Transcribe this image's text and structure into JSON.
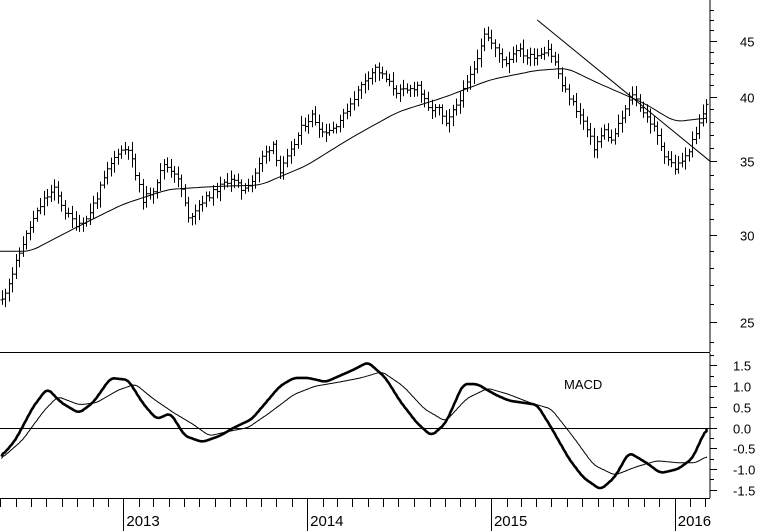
{
  "chart_data": [
    {
      "type": "ohlc",
      "panel": "price",
      "scale": "log",
      "ylim": [
        23.5,
        49
      ],
      "yticks": [
        25,
        30,
        35,
        40,
        45
      ],
      "ytick_labels": [
        "25",
        "30",
        "35",
        "40",
        "45"
      ],
      "x_start": "2012-05-01",
      "x_end": "2016-03-11",
      "bar_interval_days": 7,
      "anchors": [
        [
          "2012-05-04",
          26.2
        ],
        [
          "2012-05-25",
          27.7
        ],
        [
          "2012-06-15",
          29.5
        ],
        [
          "2012-07-06",
          31.0
        ],
        [
          "2012-07-27",
          32.3
        ],
        [
          "2012-08-17",
          33.0
        ],
        [
          "2012-09-07",
          31.5
        ],
        [
          "2012-09-28",
          30.7
        ],
        [
          "2012-10-19",
          31.0
        ],
        [
          "2012-11-09",
          32.5
        ],
        [
          "2012-11-30",
          34.3
        ],
        [
          "2012-12-21",
          35.7
        ],
        [
          "2013-01-11",
          36.0
        ],
        [
          "2013-01-25",
          34.0
        ],
        [
          "2013-02-08",
          32.3
        ],
        [
          "2013-03-01",
          33.0
        ],
        [
          "2013-03-22",
          34.8
        ],
        [
          "2013-04-12",
          34.2
        ],
        [
          "2013-04-26",
          33.0
        ],
        [
          "2013-05-10",
          31.0
        ],
        [
          "2013-05-31",
          32.0
        ],
        [
          "2013-06-21",
          32.6
        ],
        [
          "2013-07-12",
          33.2
        ],
        [
          "2013-08-02",
          33.8
        ],
        [
          "2013-08-23",
          33.0
        ],
        [
          "2013-09-13",
          33.6
        ],
        [
          "2013-10-04",
          35.3
        ],
        [
          "2013-10-25",
          36.3
        ],
        [
          "2013-11-08",
          34.2
        ],
        [
          "2013-11-29",
          35.7
        ],
        [
          "2013-12-20",
          37.5
        ],
        [
          "2014-01-10",
          38.5
        ],
        [
          "2014-01-31",
          37.2
        ],
        [
          "2014-02-21",
          37.5
        ],
        [
          "2014-03-14",
          38.5
        ],
        [
          "2014-04-04",
          40.0
        ],
        [
          "2014-04-25",
          41.5
        ],
        [
          "2014-05-16",
          42.5
        ],
        [
          "2014-06-06",
          41.5
        ],
        [
          "2014-06-27",
          40.5
        ],
        [
          "2014-07-18",
          40.5
        ],
        [
          "2014-08-08",
          41.0
        ],
        [
          "2014-08-29",
          39.0
        ],
        [
          "2014-09-19",
          39.0
        ],
        [
          "2014-10-03",
          37.7
        ],
        [
          "2014-10-17",
          38.8
        ],
        [
          "2014-11-07",
          40.5
        ],
        [
          "2014-11-28",
          42.5
        ],
        [
          "2014-12-19",
          45.8
        ],
        [
          "2015-01-09",
          44.2
        ],
        [
          "2015-01-30",
          43.0
        ],
        [
          "2015-02-20",
          44.3
        ],
        [
          "2015-03-13",
          43.5
        ],
        [
          "2015-04-03",
          43.7
        ],
        [
          "2015-04-24",
          44.3
        ],
        [
          "2015-05-08",
          43.0
        ],
        [
          "2015-05-22",
          41.0
        ],
        [
          "2015-06-12",
          39.5
        ],
        [
          "2015-07-03",
          38.0
        ],
        [
          "2015-07-24",
          36.0
        ],
        [
          "2015-08-14",
          37.3
        ],
        [
          "2015-08-28",
          36.5
        ],
        [
          "2015-09-18",
          38.3
        ],
        [
          "2015-10-09",
          40.3
        ],
        [
          "2015-10-30",
          38.8
        ],
        [
          "2015-11-20",
          37.5
        ],
        [
          "2015-12-11",
          35.5
        ],
        [
          "2016-01-01",
          34.5
        ],
        [
          "2016-01-22",
          35.3
        ],
        [
          "2016-02-12",
          37.0
        ],
        [
          "2016-03-04",
          39.5
        ]
      ],
      "moving_average": [
        [
          "2012-05-01",
          29.0
        ],
        [
          "2012-07-01",
          29.0
        ],
        [
          "2012-10-01",
          30.5
        ],
        [
          "2013-01-01",
          32.0
        ],
        [
          "2013-04-01",
          33.0
        ],
        [
          "2013-07-01",
          33.2
        ],
        [
          "2013-10-01",
          33.3
        ],
        [
          "2014-01-01",
          34.7
        ],
        [
          "2014-04-01",
          36.8
        ],
        [
          "2014-07-01",
          38.8
        ],
        [
          "2014-10-01",
          40.0
        ],
        [
          "2015-01-01",
          41.5
        ],
        [
          "2015-04-01",
          42.3
        ],
        [
          "2015-06-01",
          42.5
        ],
        [
          "2015-08-01",
          41.2
        ],
        [
          "2015-11-01",
          39.5
        ],
        [
          "2016-01-01",
          38.0
        ],
        [
          "2016-03-04",
          38.3
        ]
      ],
      "trendline": [
        [
          "2015-04-03",
          47.0
        ],
        [
          "2016-03-11",
          35.0
        ]
      ],
      "xticks": [
        "2013-01-01",
        "2014-01-01",
        "2015-01-01",
        "2016-01-01"
      ],
      "xtick_labels": [
        "2013",
        "2014",
        "2015",
        "2016"
      ]
    },
    {
      "type": "line",
      "panel": "indicator",
      "title": "MACD",
      "ylim": [
        -1.7,
        1.8
      ],
      "yticks": [
        -1.5,
        -1.0,
        -0.5,
        0.0,
        0.5,
        1.0,
        1.5
      ],
      "ytick_labels": [
        "-1.5",
        "-1.0",
        "-0.5",
        "0.0",
        "0.5",
        "1.0",
        "1.5"
      ],
      "zero_line": 0.0,
      "series": [
        {
          "role": "macd",
          "points": [
            [
              "2012-05-04",
              -0.7
            ],
            [
              "2012-06-01",
              -0.3
            ],
            [
              "2012-07-06",
              0.5
            ],
            [
              "2012-08-03",
              0.95
            ],
            [
              "2012-08-31",
              0.6
            ],
            [
              "2012-10-05",
              0.35
            ],
            [
              "2012-11-02",
              0.6
            ],
            [
              "2012-12-07",
              1.2
            ],
            [
              "2013-01-11",
              1.15
            ],
            [
              "2013-02-08",
              0.6
            ],
            [
              "2013-03-08",
              0.2
            ],
            [
              "2013-04-05",
              0.35
            ],
            [
              "2013-05-03",
              -0.2
            ],
            [
              "2013-06-07",
              -0.35
            ],
            [
              "2013-07-12",
              -0.2
            ],
            [
              "2013-08-09",
              0.0
            ],
            [
              "2013-09-13",
              0.2
            ],
            [
              "2013-10-11",
              0.6
            ],
            [
              "2013-11-08",
              1.0
            ],
            [
              "2013-12-06",
              1.2
            ],
            [
              "2014-01-03",
              1.2
            ],
            [
              "2014-02-07",
              1.1
            ],
            [
              "2014-03-07",
              1.25
            ],
            [
              "2014-04-04",
              1.4
            ],
            [
              "2014-05-02",
              1.58
            ],
            [
              "2014-06-06",
              1.2
            ],
            [
              "2014-07-04",
              0.65
            ],
            [
              "2014-08-08",
              0.1
            ],
            [
              "2014-09-05",
              -0.2
            ],
            [
              "2014-10-03",
              0.1
            ],
            [
              "2014-11-07",
              1.05
            ],
            [
              "2014-12-05",
              1.05
            ],
            [
              "2015-01-09",
              0.8
            ],
            [
              "2015-02-06",
              0.65
            ],
            [
              "2015-03-06",
              0.6
            ],
            [
              "2015-04-03",
              0.55
            ],
            [
              "2015-05-01",
              0.0
            ],
            [
              "2015-06-05",
              -0.75
            ],
            [
              "2015-07-03",
              -1.2
            ],
            [
              "2015-08-07",
              -1.5
            ],
            [
              "2015-09-04",
              -1.2
            ],
            [
              "2015-10-02",
              -0.6
            ],
            [
              "2015-11-06",
              -0.85
            ],
            [
              "2015-12-04",
              -1.1
            ],
            [
              "2016-01-08",
              -1.0
            ],
            [
              "2016-02-05",
              -0.75
            ],
            [
              "2016-03-04",
              -0.02
            ]
          ]
        },
        {
          "role": "signal",
          "points": [
            [
              "2012-05-04",
              -0.75
            ],
            [
              "2012-06-15",
              -0.3
            ],
            [
              "2012-07-27",
              0.4
            ],
            [
              "2012-08-24",
              0.75
            ],
            [
              "2012-10-05",
              0.55
            ],
            [
              "2012-11-09",
              0.6
            ],
            [
              "2012-12-21",
              0.9
            ],
            [
              "2013-01-25",
              1.05
            ],
            [
              "2013-03-01",
              0.7
            ],
            [
              "2013-04-12",
              0.35
            ],
            [
              "2013-05-17",
              0.1
            ],
            [
              "2013-06-21",
              -0.2
            ],
            [
              "2013-07-26",
              -0.1
            ],
            [
              "2013-09-06",
              0.0
            ],
            [
              "2013-10-18",
              0.35
            ],
            [
              "2013-12-06",
              0.8
            ],
            [
              "2014-01-17",
              1.0
            ],
            [
              "2014-03-07",
              1.1
            ],
            [
              "2014-04-18",
              1.2
            ],
            [
              "2014-05-30",
              1.35
            ],
            [
              "2014-07-11",
              1.0
            ],
            [
              "2014-08-22",
              0.45
            ],
            [
              "2014-10-03",
              0.15
            ],
            [
              "2014-11-14",
              0.7
            ],
            [
              "2014-12-26",
              0.95
            ],
            [
              "2015-02-06",
              0.8
            ],
            [
              "2015-03-20",
              0.6
            ],
            [
              "2015-05-01",
              0.45
            ],
            [
              "2015-06-12",
              -0.2
            ],
            [
              "2015-07-24",
              -0.9
            ],
            [
              "2015-09-04",
              -1.15
            ],
            [
              "2015-10-16",
              -0.95
            ],
            [
              "2015-11-27",
              -0.8
            ],
            [
              "2016-01-08",
              -0.85
            ],
            [
              "2016-02-12",
              -0.85
            ],
            [
              "2016-03-04",
              -0.7
            ]
          ]
        }
      ]
    }
  ]
}
